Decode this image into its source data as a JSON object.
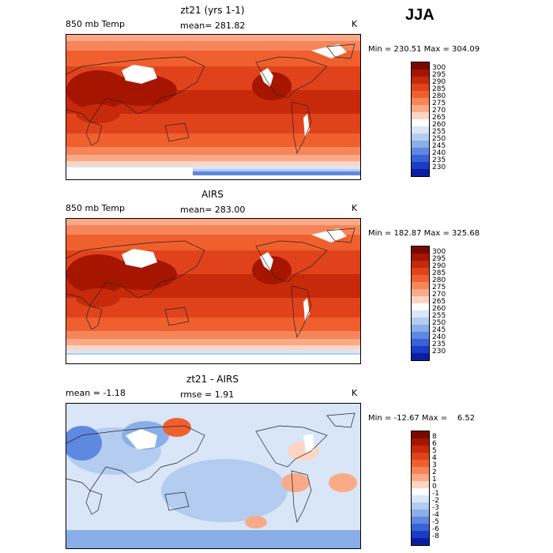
{
  "season": "JJA",
  "panels": [
    {
      "id": "model",
      "title": "zt21 (yrs 1-1)",
      "left_label": "850 mb Temp",
      "stat_text": "mean= 281.82",
      "unit": "K",
      "minmax": "Min = 230.51 Max = 304.09",
      "colorbar_labels": [
        "300",
        "295",
        "290",
        "285",
        "280",
        "275",
        "270",
        "265",
        "260",
        "255",
        "250",
        "245",
        "240",
        "235",
        "230"
      ],
      "colorbar_colors": [
        "#7a0a00",
        "#a51500",
        "#c72a0a",
        "#e0431c",
        "#f0602e",
        "#f7855a",
        "#fbaa88",
        "#fdd5c2",
        "#ffffff",
        "#d8e6f7",
        "#b3ccf0",
        "#8aaee8",
        "#5f88e0",
        "#3962d6",
        "#1a3cc8",
        "#0a1ea0"
      ],
      "field": "temp"
    },
    {
      "id": "obs",
      "title": "AIRS",
      "left_label": "850 mb Temp",
      "stat_text": "mean= 283.00",
      "unit": "K",
      "minmax": "Min = 182.87 Max = 325.68",
      "colorbar_labels": [
        "300",
        "295",
        "290",
        "285",
        "280",
        "275",
        "270",
        "265",
        "260",
        "255",
        "250",
        "245",
        "240",
        "235",
        "230"
      ],
      "colorbar_colors": [
        "#7a0a00",
        "#a51500",
        "#c72a0a",
        "#e0431c",
        "#f0602e",
        "#f7855a",
        "#fbaa88",
        "#fdd5c2",
        "#ffffff",
        "#d8e6f7",
        "#b3ccf0",
        "#8aaee8",
        "#5f88e0",
        "#3962d6",
        "#1a3cc8",
        "#0a1ea0"
      ],
      "field": "temp"
    },
    {
      "id": "diff",
      "title": "zt21 - AIRS",
      "left_label": "mean =   -1.18",
      "stat_text": "rmse =    1.91",
      "unit": "K",
      "minmax": "Min = -12.67 Max =    6.52",
      "colorbar_labels": [
        "8",
        "6",
        "5",
        "4",
        "3",
        "2",
        "1",
        "0",
        "-1",
        "-2",
        "-3",
        "-4",
        "-5",
        "-6",
        "-8"
      ],
      "colorbar_colors": [
        "#7a0a00",
        "#a51500",
        "#c72a0a",
        "#e0431c",
        "#f0602e",
        "#f7855a",
        "#fbaa88",
        "#fdd5c2",
        "#ffffff",
        "#d8e6f7",
        "#b3ccf0",
        "#8aaee8",
        "#5f88e0",
        "#3962d6",
        "#1a3cc8",
        "#0a1ea0"
      ],
      "field": "diff"
    }
  ],
  "chart_data": [
    {
      "type": "heatmap",
      "title": "zt21 (yrs 1-1)",
      "variable": "850 mb Temp",
      "units": "K",
      "mean": 281.82,
      "min": 230.51,
      "max": 304.09,
      "levels": [
        230,
        235,
        240,
        245,
        250,
        255,
        260,
        265,
        270,
        275,
        280,
        285,
        290,
        295,
        300
      ]
    },
    {
      "type": "heatmap",
      "title": "AIRS",
      "variable": "850 mb Temp",
      "units": "K",
      "mean": 283.0,
      "min": 182.87,
      "max": 325.68,
      "levels": [
        230,
        235,
        240,
        245,
        250,
        255,
        260,
        265,
        270,
        275,
        280,
        285,
        290,
        295,
        300
      ]
    },
    {
      "type": "heatmap",
      "title": "zt21 - AIRS",
      "units": "K",
      "mean": -1.18,
      "rmse": 1.91,
      "min": -12.67,
      "max": 6.52,
      "levels": [
        -8,
        -6,
        -5,
        -4,
        -3,
        -2,
        -1,
        0,
        1,
        2,
        3,
        4,
        5,
        6,
        8
      ]
    }
  ]
}
